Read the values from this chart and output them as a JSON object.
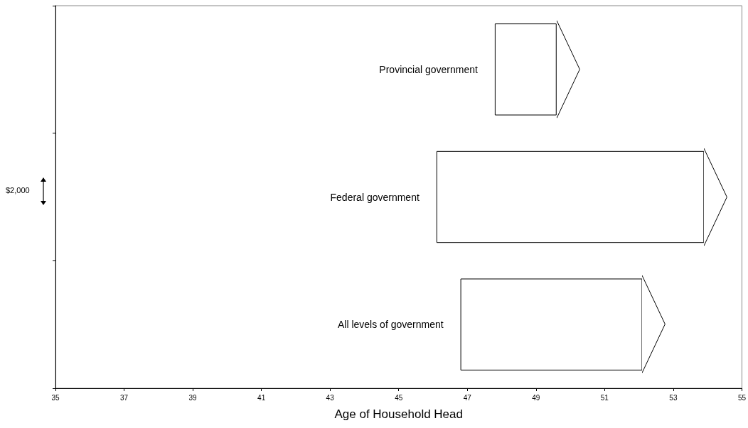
{
  "chart_data": {
    "type": "bar",
    "orientation": "horizontal",
    "xlabel": "Age of Household Head",
    "categories": [
      "Provincial government",
      "Federal government",
      "All levels of government"
    ],
    "base": [
      47.8,
      46.1,
      46.8
    ],
    "values": [
      1.8,
      7.8,
      5.3
    ],
    "color": "#ffffff",
    "xlim": [
      35,
      55
    ],
    "xticks": [
      35,
      37,
      39,
      41,
      43,
      45,
      47,
      49,
      51,
      53,
      55
    ],
    "tick_labels": "x",
    "grid": false,
    "annotations": [
      "$2,000"
    ]
  }
}
